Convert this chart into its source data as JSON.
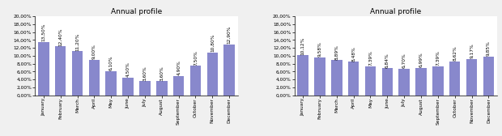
{
  "title": "Annual profile",
  "months": [
    "January",
    "February",
    "March",
    "April",
    "May",
    "June",
    "July",
    "August",
    "September",
    "October",
    "November",
    "December"
  ],
  "heat_values": [
    13.5,
    12.4,
    11.2,
    9.0,
    6.1,
    4.5,
    3.6,
    3.6,
    4.9,
    7.5,
    10.8,
    12.9
  ],
  "elec_values": [
    10.12,
    9.58,
    8.89,
    8.48,
    7.39,
    6.84,
    6.7,
    6.99,
    7.39,
    8.62,
    9.17,
    9.85
  ],
  "bar_color": "#8888cc",
  "ylim": [
    0,
    20
  ],
  "yticks": [
    0,
    2,
    4,
    6,
    8,
    10,
    12,
    14,
    16,
    18,
    20
  ],
  "label_fontsize": 4.2,
  "tick_fontsize": 4.2,
  "title_fontsize": 6.5,
  "background_color": "#f0f0f0",
  "fig_width": 6.2,
  "fig_height": 1.68,
  "dpi": 100
}
